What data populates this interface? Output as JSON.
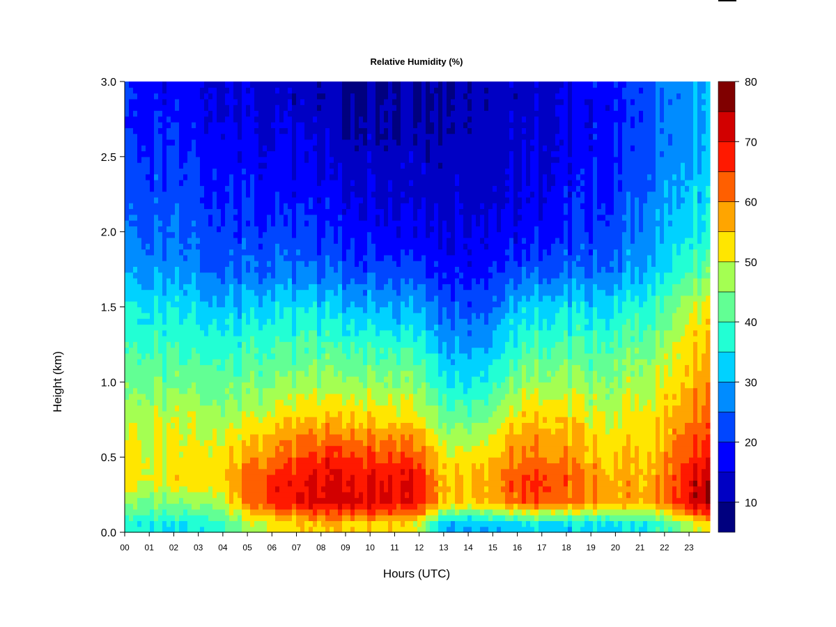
{
  "chart_data": {
    "type": "heatmap",
    "title": "Relative Humidity (%)",
    "xlabel": "Hours (UTC)",
    "ylabel": "Height (km)",
    "xlim": [
      0,
      23.85
    ],
    "ylim": [
      0.0,
      3.0
    ],
    "x_ticks": [
      "00",
      "01",
      "02",
      "03",
      "04",
      "05",
      "06",
      "07",
      "08",
      "09",
      "10",
      "11",
      "12",
      "13",
      "14",
      "15",
      "16",
      "17",
      "18",
      "19",
      "20",
      "21",
      "22",
      "23"
    ],
    "y_ticks": [
      "0.0",
      "0.5",
      "1.0",
      "1.5",
      "2.0",
      "2.5",
      "3.0"
    ],
    "colorbar": {
      "levels": [
        5,
        10,
        15,
        20,
        25,
        30,
        35,
        40,
        45,
        50,
        55,
        60,
        65,
        70,
        75,
        80
      ],
      "tick_labels": [
        "10",
        "20",
        "30",
        "40",
        "50",
        "60",
        "70",
        "80"
      ],
      "colors": [
        "#00007f",
        "#0000c4",
        "#0000ff",
        "#0046ff",
        "#008cff",
        "#00d2ff",
        "#22ffd4",
        "#62ff94",
        "#a4ff52",
        "#ffe600",
        "#ffa500",
        "#ff5f00",
        "#ff1900",
        "#d20000",
        "#800000"
      ]
    },
    "heights_km": [
      0.05,
      0.2,
      0.35,
      0.5,
      0.65,
      0.8,
      1.0,
      1.25,
      1.5,
      1.75,
      2.0,
      2.25,
      2.5,
      2.75,
      3.0
    ],
    "hours_utc": [
      0,
      1,
      2,
      3,
      4,
      5,
      6,
      7,
      8,
      9,
      10,
      11,
      12,
      13,
      14,
      15,
      16,
      17,
      18,
      19,
      20,
      21,
      22,
      23,
      23.85
    ],
    "values_rh": [
      [
        38,
        46,
        53,
        53,
        50,
        48,
        44,
        40,
        36,
        30,
        26,
        24,
        22,
        20,
        20
      ],
      [
        36,
        45,
        52,
        52,
        50,
        48,
        44,
        40,
        35,
        28,
        25,
        23,
        21,
        19,
        18
      ],
      [
        34,
        44,
        52,
        52,
        50,
        48,
        43,
        39,
        34,
        27,
        24,
        22,
        20,
        18,
        17
      ],
      [
        36,
        46,
        53,
        52,
        50,
        48,
        43,
        38,
        33,
        26,
        23,
        21,
        19,
        17,
        16
      ],
      [
        40,
        50,
        55,
        53,
        50,
        47,
        43,
        38,
        32,
        25,
        22,
        20,
        18,
        16,
        15
      ],
      [
        46,
        60,
        62,
        58,
        53,
        48,
        43,
        38,
        32,
        25,
        21,
        19,
        17,
        15,
        14
      ],
      [
        50,
        67,
        66,
        60,
        56,
        50,
        44,
        39,
        33,
        25,
        21,
        18,
        16,
        14,
        13
      ],
      [
        52,
        69,
        68,
        63,
        58,
        52,
        45,
        39,
        33,
        25,
        20,
        17,
        15,
        13,
        12
      ],
      [
        54,
        71,
        70,
        66,
        59,
        53,
        46,
        40,
        33,
        24,
        20,
        17,
        14,
        12,
        11
      ],
      [
        55,
        73,
        71,
        67,
        60,
        54,
        47,
        40,
        32,
        24,
        19,
        16,
        13,
        11,
        10
      ],
      [
        54,
        72,
        70,
        66,
        59,
        53,
        47,
        39,
        31,
        23,
        18,
        15,
        13,
        11,
        10
      ],
      [
        53,
        71,
        70,
        65,
        58,
        52,
        46,
        38,
        30,
        22,
        17,
        14,
        12,
        10,
        10
      ],
      [
        50,
        70,
        68,
        63,
        57,
        50,
        44,
        37,
        29,
        21,
        16,
        13,
        12,
        10,
        10
      ],
      [
        30,
        55,
        56,
        52,
        47,
        42,
        36,
        30,
        24,
        18,
        15,
        13,
        12,
        11,
        10
      ],
      [
        29,
        54,
        55,
        51,
        46,
        40,
        33,
        28,
        22,
        17,
        14,
        13,
        12,
        11,
        10
      ],
      [
        30,
        56,
        57,
        54,
        49,
        44,
        37,
        30,
        24,
        18,
        15,
        13,
        12,
        11,
        11
      ],
      [
        32,
        62,
        64,
        60,
        57,
        52,
        45,
        38,
        32,
        22,
        17,
        15,
        14,
        13,
        12
      ],
      [
        33,
        65,
        67,
        61,
        58,
        54,
        47,
        40,
        33,
        23,
        18,
        16,
        15,
        14,
        13
      ],
      [
        32,
        62,
        63,
        59,
        56,
        52,
        46,
        40,
        33,
        24,
        19,
        17,
        16,
        15,
        15
      ],
      [
        33,
        60,
        60,
        56,
        54,
        50,
        45,
        40,
        33,
        25,
        21,
        19,
        18,
        17,
        17
      ],
      [
        34,
        58,
        57,
        55,
        52,
        50,
        46,
        41,
        35,
        27,
        23,
        21,
        20,
        19,
        19
      ],
      [
        35,
        57,
        56,
        55,
        53,
        51,
        48,
        43,
        37,
        30,
        27,
        24,
        23,
        22,
        22
      ],
      [
        38,
        60,
        59,
        57,
        55,
        53,
        50,
        46,
        40,
        33,
        30,
        28,
        26,
        25,
        25
      ],
      [
        50,
        72,
        71,
        67,
        64,
        60,
        57,
        54,
        50,
        40,
        35,
        32,
        30,
        29,
        28
      ],
      [
        52,
        74,
        73,
        68,
        64,
        61,
        58,
        55,
        51,
        42,
        36,
        33,
        31,
        30,
        29
      ]
    ]
  }
}
